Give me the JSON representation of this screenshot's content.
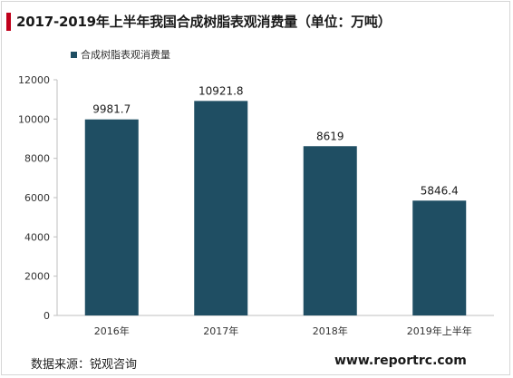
{
  "title": "2017-2019年上半年我国合成树脂表观消费量（单位：万吨）",
  "source": "数据来源：锐观咨询",
  "website": "www.reportrc.com",
  "colors": {
    "bar": "#1f4e63",
    "accent": "#c0001b",
    "axis": "#bfbfbf"
  },
  "chart_data": {
    "type": "bar",
    "categories": [
      "2016年",
      "2017年",
      "2018年",
      "2019年上半年"
    ],
    "series": [
      {
        "name": "合成树脂表观消费量",
        "values": [
          9981.7,
          10921.8,
          8619,
          5846.4
        ]
      }
    ],
    "data_labels": [
      "9981.7",
      "10921.8",
      "8619",
      "5846.4"
    ],
    "yticks": [
      0,
      2000,
      4000,
      6000,
      8000,
      10000,
      12000
    ],
    "ylim": [
      0,
      12000
    ],
    "grid": false,
    "legend_position": "top-left"
  }
}
